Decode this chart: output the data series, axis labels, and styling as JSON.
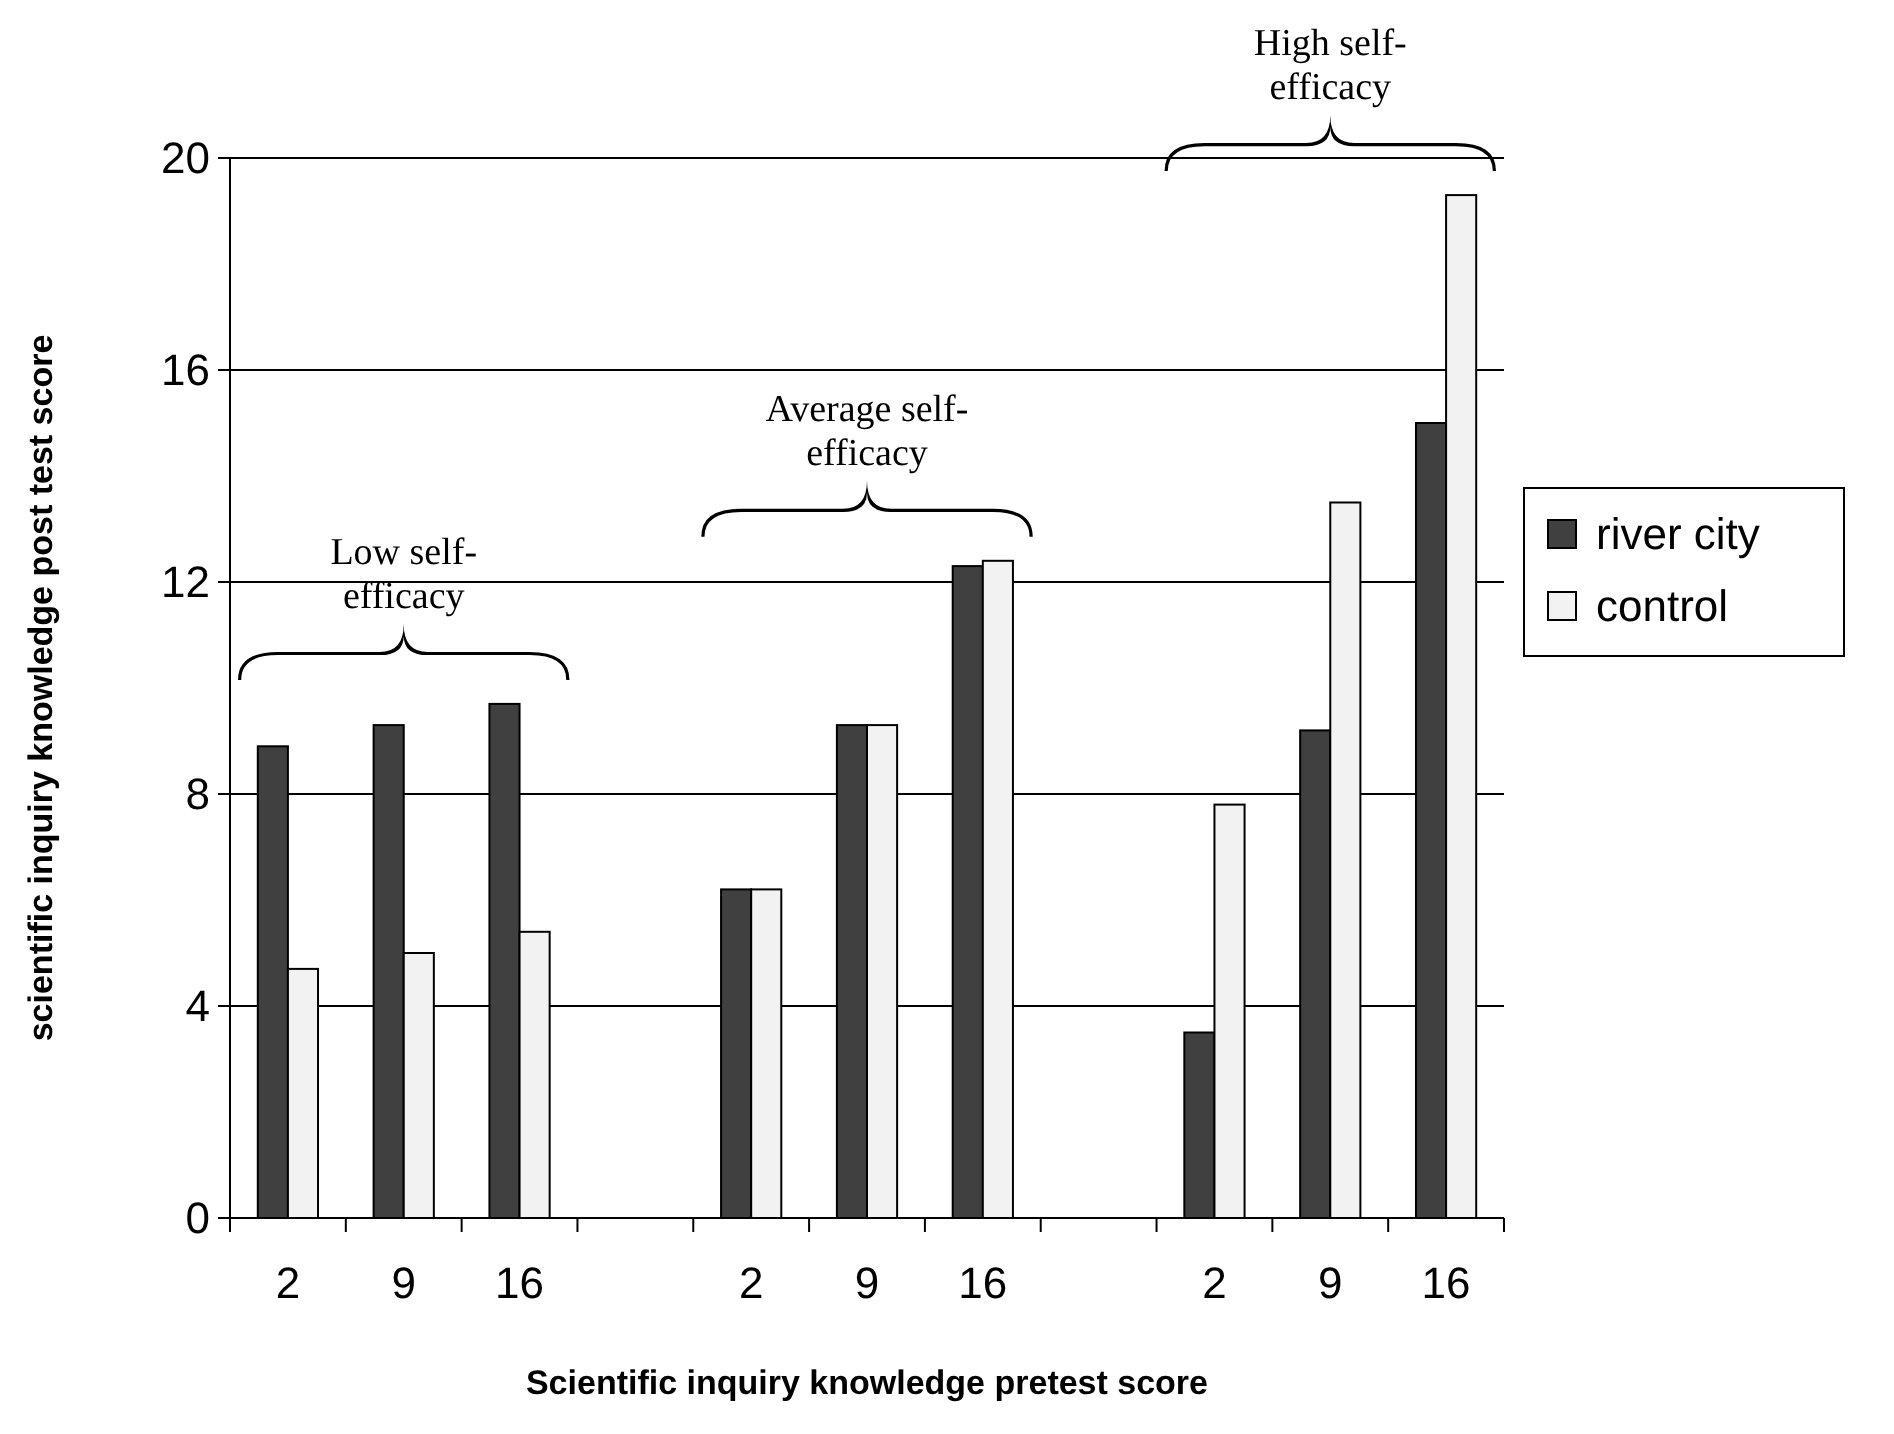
{
  "chart_data": {
    "type": "bar",
    "xlabel": "Scientific inquiry knowledge pretest score",
    "ylabel": "scientific inquiry knowledge post test score",
    "categories": [
      "2",
      "9",
      "16",
      null,
      "2",
      "9",
      "16",
      null,
      "2",
      "9",
      "16"
    ],
    "series": [
      {
        "name": "river city",
        "color": "#404040",
        "values": [
          8.9,
          9.3,
          9.7,
          null,
          6.2,
          9.3,
          12.3,
          null,
          3.5,
          9.2,
          15.0
        ]
      },
      {
        "name": "control",
        "color": "#f2f2f2",
        "values": [
          4.7,
          5.0,
          5.4,
          null,
          6.2,
          9.3,
          12.4,
          null,
          7.8,
          13.5,
          19.3
        ]
      }
    ],
    "ylim": [
      0,
      20
    ],
    "yticks": [
      0,
      4,
      8,
      12,
      16,
      20
    ],
    "grid": "y",
    "legend": "right",
    "annotations": [
      "Low self-efficacy",
      "Average self-efficacy",
      "High self-efficacy"
    ]
  }
}
